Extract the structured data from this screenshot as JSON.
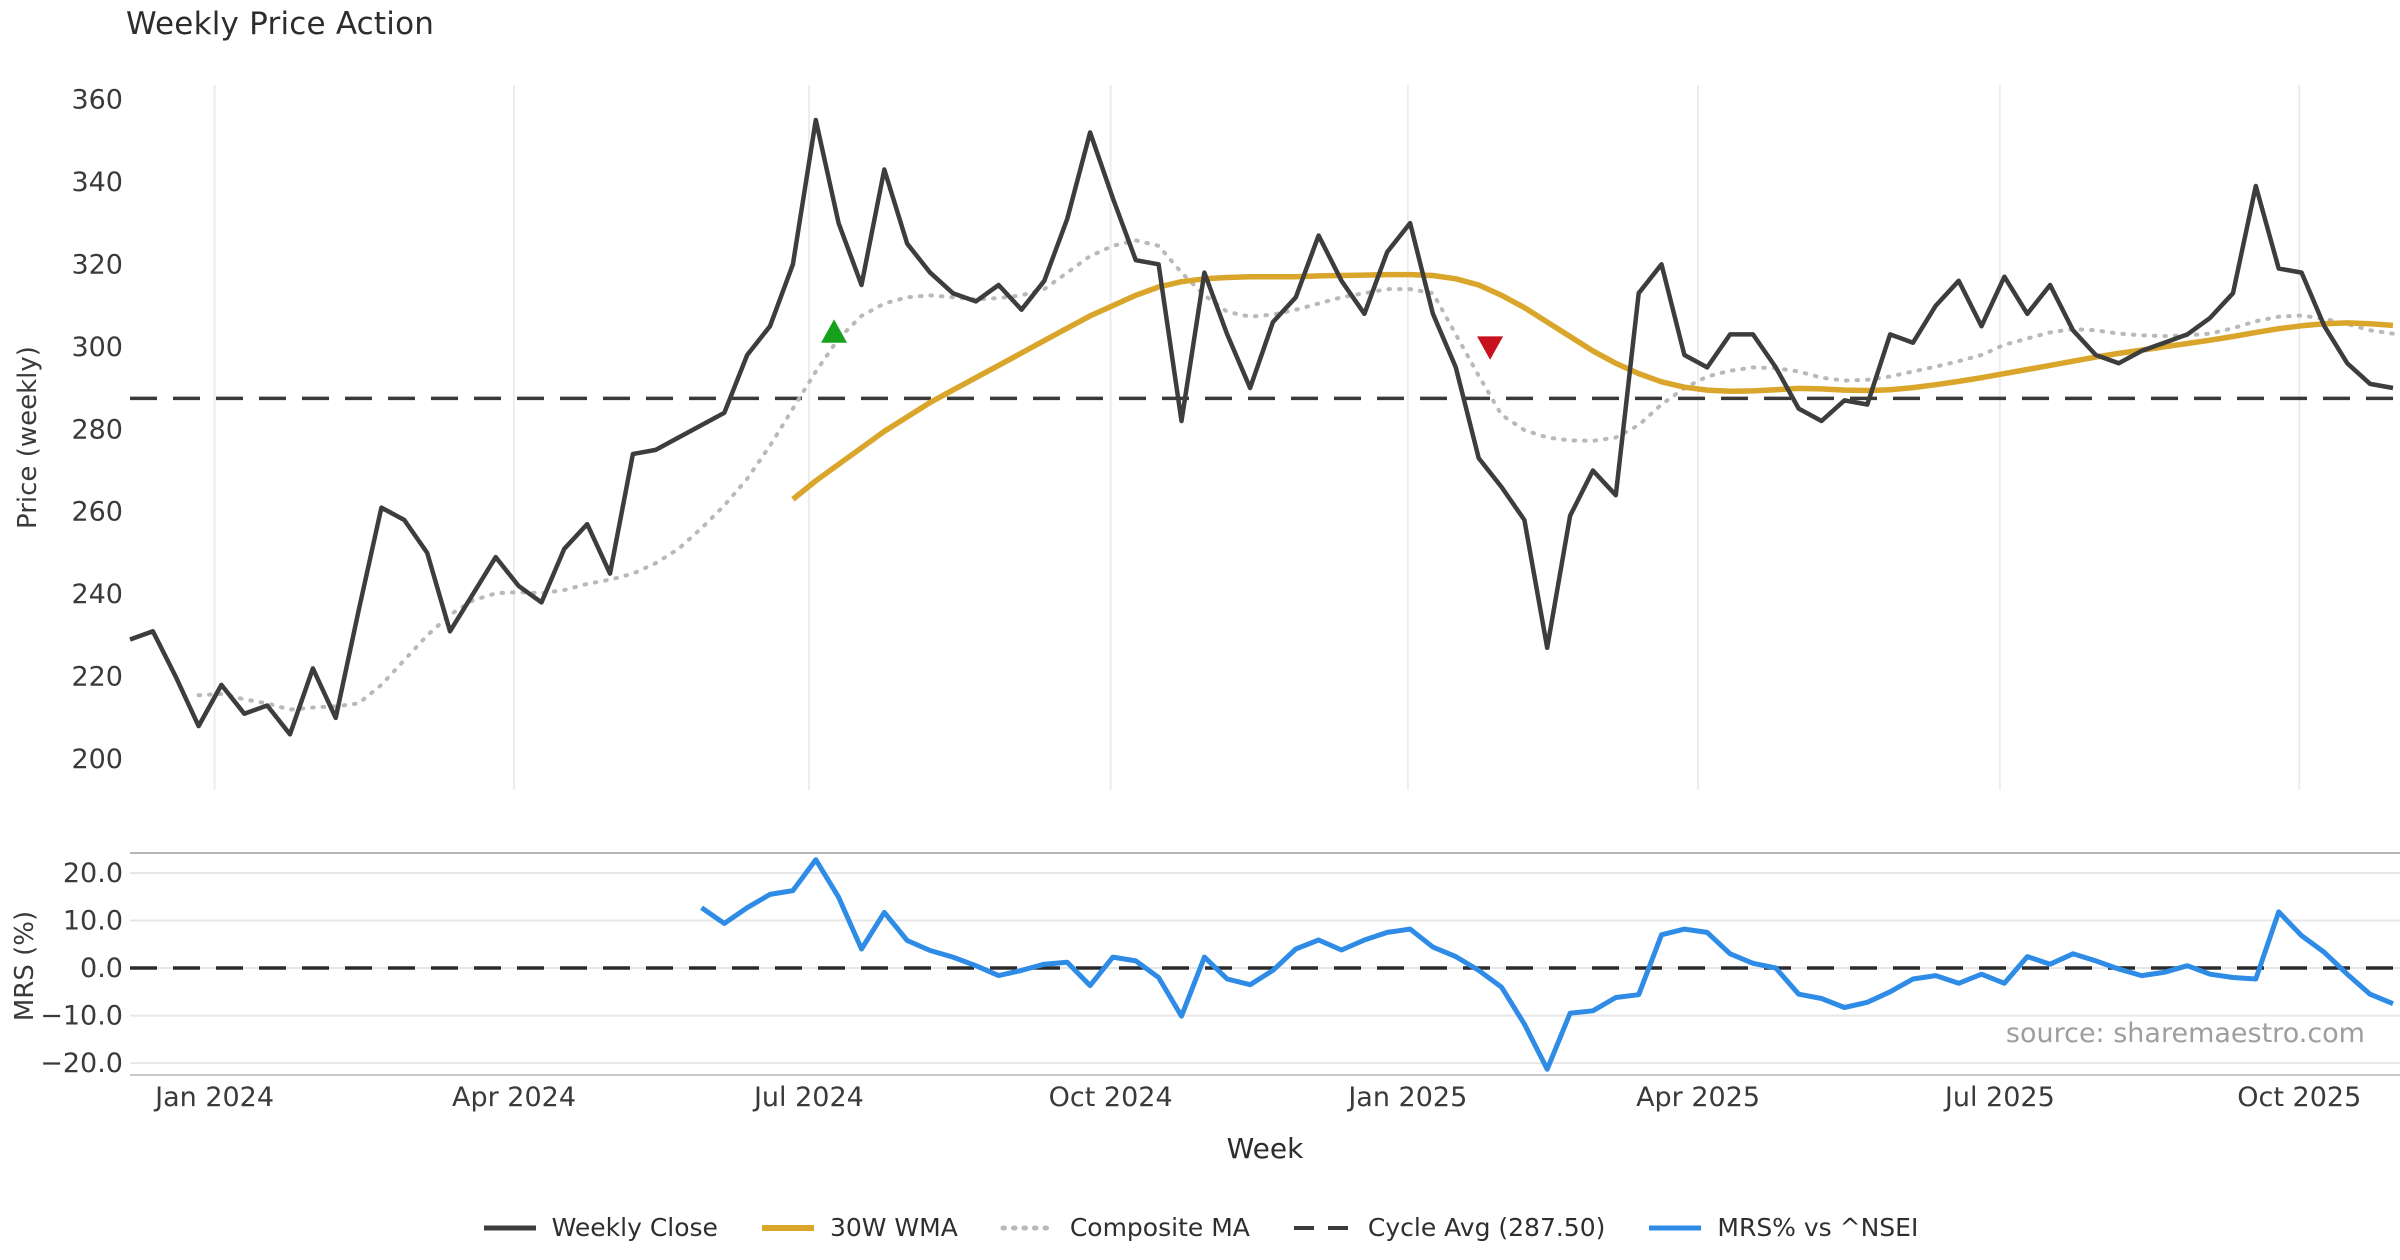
{
  "title": "Weekly Price Action",
  "source_note": "source: sharemaestro.com",
  "axes": {
    "price_label": "Price (weekly)",
    "mrs_label": "MRS (%)",
    "x_label": "Week"
  },
  "legend": [
    {
      "label": "Weekly Close",
      "color": "#3d3d3d",
      "style": "solid"
    },
    {
      "label": "30W WMA",
      "color": "#d9a62b",
      "style": "solid"
    },
    {
      "label": "Composite MA",
      "color": "#b9b9b9",
      "style": "dotted"
    },
    {
      "label": "Cycle Avg (287.50)",
      "color": "#3a3a3a",
      "style": "dashed"
    },
    {
      "label": "MRS% vs ^NSEI",
      "color": "#2e8ce6",
      "style": "solid"
    }
  ],
  "chart_data": {
    "type": "line",
    "x_axis": {
      "label": "Week",
      "n_points": 100,
      "tick_labels": [
        "Jan 2024",
        "Apr 2024",
        "Jul 2024",
        "Oct 2024",
        "Jan 2025",
        "Apr 2025",
        "Jul 2025",
        "Oct 2025"
      ],
      "tick_weeks": [
        3.7,
        16.8,
        29.7,
        42.9,
        55.9,
        68.6,
        81.8,
        94.9
      ]
    },
    "price_panel": {
      "ylabel": "Price (weekly)",
      "ylim": [
        192.5,
        363.5
      ],
      "yticks": [
        200,
        220,
        240,
        260,
        280,
        300,
        320,
        340,
        360
      ],
      "grid": "vertical",
      "cycle_avg": 287.5,
      "series": [
        {
          "name": "Weekly Close",
          "color": "#3d3d3d",
          "style": "solid",
          "width": 4.5,
          "values": [
            229,
            231,
            220,
            208,
            218,
            211,
            213,
            206,
            222,
            210,
            236,
            261,
            258,
            250,
            231,
            240,
            249,
            242,
            238,
            251,
            257,
            245,
            274,
            275,
            278,
            281,
            284,
            298,
            305,
            320,
            355,
            330,
            315,
            343,
            325,
            318,
            313,
            311,
            315,
            309,
            316,
            331,
            352,
            336,
            321,
            320,
            282,
            318,
            303,
            290,
            306,
            312,
            327,
            316,
            308,
            323,
            330,
            308,
            295,
            273,
            266,
            258,
            227,
            259,
            270,
            264,
            313,
            320,
            298,
            295,
            303,
            303,
            295,
            285,
            282,
            287,
            286,
            303,
            301,
            310,
            316,
            305,
            317,
            308,
            315,
            304,
            298,
            296,
            299,
            301,
            303,
            307,
            313,
            339,
            319,
            318,
            305,
            296,
            291,
            290
          ]
        },
        {
          "name": "30W WMA",
          "color": "#d9a62b",
          "style": "solid",
          "width": 5.5,
          "values": [
            null,
            null,
            null,
            null,
            null,
            null,
            null,
            null,
            null,
            null,
            null,
            null,
            null,
            null,
            null,
            null,
            null,
            null,
            null,
            null,
            null,
            null,
            null,
            null,
            null,
            null,
            null,
            null,
            null,
            263,
            267.5,
            271.5,
            275.5,
            279.5,
            283,
            286.5,
            289.5,
            292.5,
            295.5,
            298.5,
            301.5,
            304.5,
            307.5,
            310,
            312.5,
            314.5,
            315.8,
            316.5,
            316.8,
            317,
            317,
            317,
            317.2,
            317.3,
            317.4,
            317.5,
            317.5,
            317.3,
            316.5,
            315,
            312.5,
            309.5,
            306,
            302.5,
            299,
            296,
            293.5,
            291.5,
            290.2,
            289.5,
            289.2,
            289.3,
            289.6,
            289.9,
            289.8,
            289.5,
            289.4,
            289.6,
            290.1,
            290.8,
            291.6,
            292.5,
            293.5,
            294.5,
            295.5,
            296.5,
            297.5,
            298.4,
            299.2,
            300,
            300.8,
            301.6,
            302.5,
            303.5,
            304.4,
            305.1,
            305.6,
            305.8,
            305.6,
            305.2
          ]
        },
        {
          "name": "Composite MA",
          "color": "#b9b9b9",
          "style": "dotted",
          "width": 4,
          "values": [
            null,
            null,
            null,
            215.5,
            215.8,
            214.5,
            213.5,
            212,
            212.5,
            212.8,
            213.5,
            218,
            224,
            230,
            235,
            238.5,
            240.2,
            240.5,
            240.2,
            241,
            242.5,
            243.5,
            245,
            247.5,
            251,
            256,
            261.5,
            268,
            276,
            285,
            294,
            302,
            307.5,
            310.5,
            312,
            312.5,
            312,
            311.5,
            311.8,
            312.5,
            314,
            318,
            322,
            324.5,
            325.8,
            324.5,
            318,
            312.5,
            308.5,
            307.3,
            307.8,
            309,
            310.5,
            312,
            313,
            314,
            314,
            313,
            303,
            293,
            283.5,
            279.8,
            278,
            277.3,
            277.2,
            278,
            281,
            286,
            290,
            292.8,
            294.2,
            295,
            294.8,
            294,
            292.5,
            291.8,
            292,
            292.8,
            294,
            295.2,
            296.5,
            298,
            300.5,
            302,
            303.5,
            304.3,
            304,
            303.2,
            302.8,
            302.6,
            302.8,
            303.2,
            304.5,
            306.2,
            307.3,
            307.6,
            306.8,
            305.5,
            304,
            303.2
          ]
        }
      ],
      "markers": [
        {
          "shape": "triangle-up",
          "color": "#16a11c",
          "week": 30.8,
          "value": 303.5
        },
        {
          "shape": "triangle-down",
          "color": "#c8101f",
          "week": 59.5,
          "value": 300
        }
      ]
    },
    "mrs_panel": {
      "ylabel": "MRS (%)",
      "ylim": [
        -22.5,
        24.2
      ],
      "yticks": [
        20,
        10,
        0,
        -10,
        -20
      ],
      "ytick_labels": [
        "20.0",
        "10.0",
        "0.0",
        "−10.0",
        "−20.0"
      ],
      "grid": "horizontal",
      "zero_line": 0,
      "series": [
        {
          "name": "MRS% vs ^NSEI",
          "color": "#2e8ce6",
          "style": "solid",
          "width": 5,
          "values": [
            null,
            null,
            null,
            null,
            null,
            null,
            null,
            null,
            null,
            null,
            null,
            null,
            null,
            null,
            null,
            null,
            null,
            null,
            null,
            null,
            null,
            null,
            null,
            null,
            null,
            12.7,
            9.4,
            12.7,
            15.5,
            16.3,
            22.8,
            14.9,
            4,
            11.7,
            5.8,
            3.7,
            2.3,
            0.5,
            -1.6,
            -0.5,
            0.8,
            1.2,
            -3.7,
            2.3,
            1.5,
            -2,
            -10.1,
            2.3,
            -2.3,
            -3.5,
            -0.5,
            4,
            5.9,
            3.8,
            5.9,
            7.5,
            8.2,
            4.4,
            2.4,
            -0.5,
            -4,
            -11.8,
            -21.3,
            -9.5,
            -9,
            -6.2,
            -5.6,
            7,
            8.2,
            7.5,
            3,
            1,
            0,
            -5.5,
            -6.4,
            -8.3,
            -7.2,
            -5,
            -2.3,
            -1.6,
            -3.2,
            -1.3,
            -3.2,
            2.4,
            0.8,
            3,
            1.5,
            -0.2,
            -1.6,
            -0.9,
            0.5,
            -1.3,
            -2,
            -2.3,
            11.8,
            6.8,
            3.3,
            -1.3,
            -5.5,
            -7.5
          ]
        }
      ]
    }
  }
}
